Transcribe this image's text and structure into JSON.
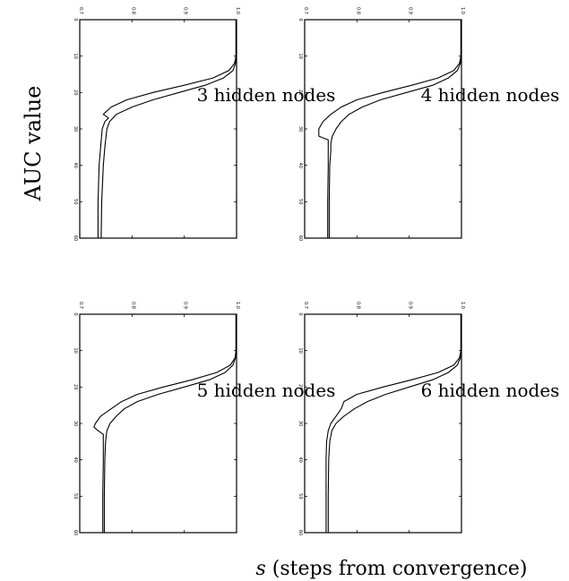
{
  "figure": {
    "ylabel": "AUC value",
    "xlabel_var": "s",
    "xlabel_rest": " (steps from convergence)"
  },
  "chart_data": [
    {
      "type": "line",
      "title": "3 hidden nodes",
      "axis_orientation": "rotated 90°: steps run top to bottom, AUC runs left to right",
      "s_ticks": [
        "0",
        "10",
        "20",
        "30",
        "40",
        "50",
        "60"
      ],
      "auc_ticks": [
        "0.7",
        "0.8",
        "0.9",
        "1.0"
      ],
      "xlim": [
        0,
        60
      ],
      "ylim": [
        0.7,
        1.0
      ],
      "series": [
        {
          "x": [
            0,
            10,
            12,
            14,
            16,
            18,
            20,
            22,
            24,
            26,
            27,
            28,
            30,
            35,
            40,
            50,
            60
          ],
          "y": [
            0.999,
            0.999,
            0.996,
            0.985,
            0.955,
            0.9,
            0.84,
            0.79,
            0.76,
            0.745,
            0.755,
            0.748,
            0.743,
            0.74,
            0.737,
            0.735,
            0.735
          ]
        },
        {
          "x": [
            0,
            10,
            12,
            14,
            16,
            18,
            20,
            22,
            24,
            26,
            28,
            30,
            35,
            40,
            50,
            60
          ],
          "y": [
            0.999,
            0.999,
            0.998,
            0.993,
            0.975,
            0.94,
            0.89,
            0.84,
            0.8,
            0.77,
            0.757,
            0.752,
            0.748,
            0.745,
            0.742,
            0.741
          ]
        }
      ]
    },
    {
      "type": "line",
      "title": "4 hidden nodes",
      "axis_orientation": "rotated 90°: steps run top to bottom, AUC runs left to right",
      "s_ticks": [
        "0",
        "10",
        "20",
        "30",
        "40",
        "50",
        "60"
      ],
      "auc_ticks": [
        "0.7",
        "0.8",
        "0.9",
        "1.0"
      ],
      "xlim": [
        0,
        60
      ],
      "ylim": [
        0.7,
        1.0
      ],
      "series": [
        {
          "x": [
            0,
            10,
            12,
            14,
            16,
            18,
            20,
            22,
            24,
            26,
            28,
            30,
            32,
            33,
            35,
            40,
            50,
            60
          ],
          "y": [
            0.999,
            0.999,
            0.996,
            0.985,
            0.955,
            0.905,
            0.85,
            0.8,
            0.77,
            0.75,
            0.735,
            0.727,
            0.727,
            0.745,
            0.745,
            0.745,
            0.744,
            0.744
          ]
        },
        {
          "x": [
            0,
            10,
            12,
            14,
            16,
            18,
            20,
            22,
            24,
            26,
            28,
            30,
            32,
            34,
            36,
            40,
            50,
            60
          ],
          "y": [
            0.999,
            0.999,
            0.998,
            0.992,
            0.975,
            0.945,
            0.895,
            0.845,
            0.81,
            0.785,
            0.77,
            0.76,
            0.753,
            0.75,
            0.75,
            0.748,
            0.747,
            0.747
          ]
        }
      ]
    },
    {
      "type": "line",
      "title": "5 hidden nodes",
      "axis_orientation": "rotated 90°: steps run top to bottom, AUC runs left to right",
      "s_ticks": [
        "0",
        "10",
        "20",
        "30",
        "40",
        "50",
        "60"
      ],
      "auc_ticks": [
        "0.7",
        "0.8",
        "0.9",
        "1.0"
      ],
      "xlim": [
        0,
        60
      ],
      "ylim": [
        0.7,
        1.0
      ],
      "series": [
        {
          "x": [
            0,
            10,
            12,
            14,
            16,
            18,
            20,
            22,
            24,
            26,
            28,
            30,
            31,
            32,
            33,
            35,
            40,
            50,
            60
          ],
          "y": [
            0.999,
            0.999,
            0.997,
            0.988,
            0.962,
            0.915,
            0.86,
            0.81,
            0.78,
            0.76,
            0.74,
            0.73,
            0.727,
            0.735,
            0.745,
            0.745,
            0.745,
            0.744,
            0.744
          ]
        },
        {
          "x": [
            0,
            10,
            12,
            14,
            16,
            18,
            20,
            22,
            24,
            26,
            28,
            30,
            32,
            34,
            36,
            40,
            50,
            60
          ],
          "y": [
            0.999,
            0.999,
            0.998,
            0.993,
            0.978,
            0.948,
            0.9,
            0.85,
            0.81,
            0.785,
            0.77,
            0.758,
            0.752,
            0.75,
            0.749,
            0.748,
            0.747,
            0.747
          ]
        }
      ]
    },
    {
      "type": "line",
      "title": "6 hidden nodes",
      "axis_orientation": "rotated 90°: steps run top to bottom, AUC runs left to right",
      "s_ticks": [
        "0",
        "10",
        "20",
        "30",
        "40",
        "50",
        "60"
      ],
      "auc_ticks": [
        "0.7",
        "0.8",
        "0.9",
        "1.0"
      ],
      "xlim": [
        0,
        60
      ],
      "ylim": [
        0.7,
        1.0
      ],
      "series": [
        {
          "x": [
            0,
            10,
            12,
            14,
            16,
            18,
            20,
            22,
            24,
            26,
            27,
            28,
            30,
            32,
            35,
            40,
            50,
            60
          ],
          "y": [
            0.999,
            0.999,
            0.996,
            0.985,
            0.955,
            0.905,
            0.85,
            0.8,
            0.775,
            0.77,
            0.765,
            0.76,
            0.75,
            0.745,
            0.742,
            0.741,
            0.741,
            0.741
          ]
        },
        {
          "x": [
            0,
            10,
            12,
            14,
            16,
            18,
            20,
            22,
            24,
            26,
            28,
            30,
            32,
            35,
            40,
            50,
            60
          ],
          "y": [
            0.999,
            0.999,
            0.998,
            0.992,
            0.975,
            0.945,
            0.9,
            0.855,
            0.82,
            0.795,
            0.775,
            0.76,
            0.752,
            0.748,
            0.746,
            0.745,
            0.745
          ]
        }
      ]
    }
  ]
}
